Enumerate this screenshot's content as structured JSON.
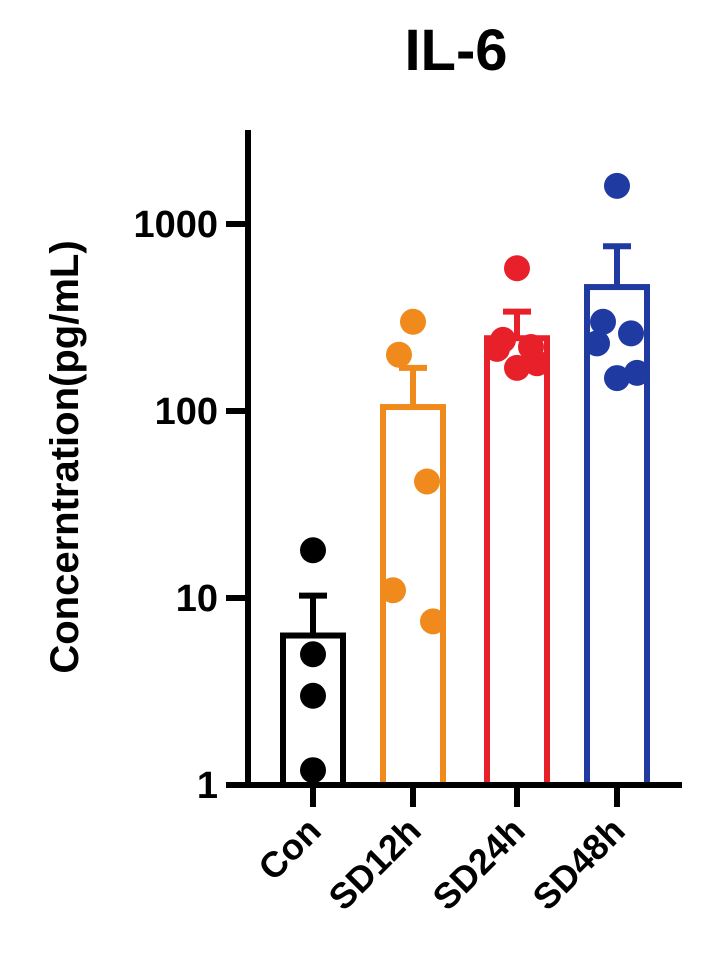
{
  "chart_data": {
    "type": "bar",
    "title": "IL-6",
    "xlabel": "",
    "ylabel": "Concerntration(pg/mL)",
    "yscale": "log",
    "ylim": [
      1,
      3000
    ],
    "yticks": [
      1,
      10,
      100,
      1000
    ],
    "ytick_labels": [
      "1",
      "10",
      "100",
      "1000"
    ],
    "grid": false,
    "categories": [
      "Con",
      "SD12h",
      "SD24h",
      "SD48h"
    ],
    "colors": [
      "#000000",
      "#f08a1c",
      "#e8202a",
      "#1f3aa0"
    ],
    "values": [
      6.3,
      105,
      245,
      460
    ],
    "error_upper": [
      10.3,
      170,
      340,
      760
    ],
    "points": [
      [
        18,
        5,
        3,
        1.2
      ],
      [
        300,
        200,
        42,
        11,
        7.5
      ],
      [
        580,
        240,
        220,
        215,
        180,
        170
      ],
      [
        1600,
        300,
        260,
        230,
        160,
        150
      ]
    ]
  }
}
